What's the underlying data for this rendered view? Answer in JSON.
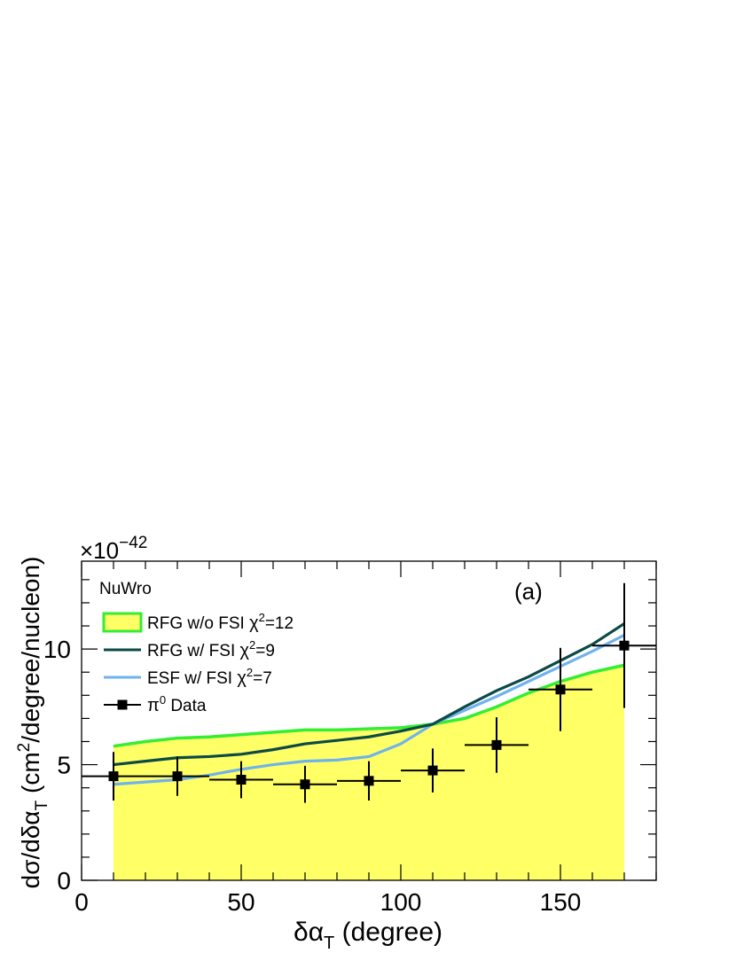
{
  "chart_data": {
    "type": "line",
    "panel_label": "(a)",
    "multiplier_base": "×10",
    "multiplier_exponent": "−42",
    "xlabel": {
      "main": "δα",
      "sub": "T",
      "unit": " (degree)"
    },
    "ylabel": {
      "pre": "dσ/dδα",
      "sub": "T",
      "mid": " (cm",
      "sup": "2",
      "post": "/degree/nucleon)"
    },
    "xlim": [
      0,
      180
    ],
    "ylim": [
      0,
      13.8
    ],
    "x_ticks": [
      0,
      50,
      100,
      150
    ],
    "y_ticks": [
      0,
      5,
      10
    ],
    "legend_title": "NuWro",
    "legend_position": "top-left",
    "series": [
      {
        "name": "RFG w/o FSI",
        "chi2_label": "χ",
        "chi2_sup": "2",
        "chi2_value": "=12",
        "style": "filled-band",
        "fill_color": "#ffff66",
        "line_color": "#33ee33",
        "x": [
          10,
          20,
          30,
          40,
          50,
          60,
          70,
          80,
          90,
          100,
          110,
          120,
          130,
          140,
          150,
          160,
          170
        ],
        "y": [
          5.8,
          6.0,
          6.15,
          6.2,
          6.3,
          6.4,
          6.5,
          6.5,
          6.55,
          6.6,
          6.75,
          7.0,
          7.5,
          8.1,
          8.6,
          9.0,
          9.3
        ]
      },
      {
        "name": "RFG w/ FSI",
        "chi2_label": "χ",
        "chi2_sup": "2",
        "chi2_value": "=9",
        "style": "line",
        "line_color": "#0b4a45",
        "x": [
          10,
          20,
          30,
          40,
          50,
          60,
          70,
          80,
          90,
          100,
          110,
          120,
          130,
          140,
          150,
          160,
          170
        ],
        "y": [
          5.0,
          5.15,
          5.3,
          5.35,
          5.45,
          5.65,
          5.9,
          6.05,
          6.2,
          6.45,
          6.75,
          7.5,
          8.2,
          8.8,
          9.5,
          10.2,
          11.1
        ]
      },
      {
        "name": "ESF w/ FSI",
        "chi2_label": "χ",
        "chi2_sup": "2",
        "chi2_value": "=7",
        "style": "line",
        "line_color": "#6fb2ee",
        "x": [
          10,
          20,
          30,
          40,
          50,
          60,
          70,
          80,
          90,
          100,
          110,
          120,
          130,
          140,
          150,
          160,
          170
        ],
        "y": [
          4.15,
          4.25,
          4.35,
          4.55,
          4.8,
          5.0,
          5.15,
          5.2,
          5.35,
          5.9,
          6.75,
          7.35,
          7.95,
          8.6,
          9.25,
          9.9,
          10.6
        ]
      },
      {
        "name": "π",
        "name_sup": "0",
        "name_suffix": " Data",
        "style": "points",
        "color": "#000000",
        "x": [
          10,
          30,
          50,
          70,
          90,
          110,
          130,
          150,
          170
        ],
        "x_halfwidth": [
          10,
          10,
          10,
          10,
          10,
          10,
          10,
          10,
          10
        ],
        "y": [
          4.5,
          4.5,
          4.35,
          4.15,
          4.3,
          4.75,
          5.85,
          8.25,
          10.15
        ],
        "y_err": [
          1.05,
          0.85,
          0.8,
          0.8,
          0.85,
          0.95,
          1.2,
          1.8,
          2.7
        ]
      }
    ]
  }
}
